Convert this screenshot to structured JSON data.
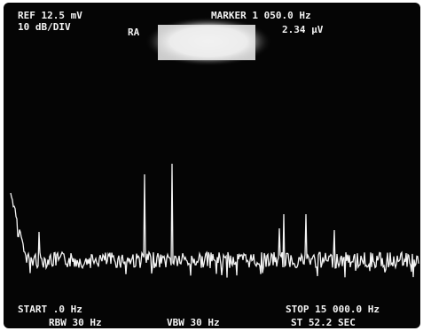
{
  "header": {
    "ref_level": "REF 12.5 mV",
    "scale": "10 dB/DIV",
    "mode": "RA",
    "marker_frequency": "MARKER 1 050.0 Hz",
    "marker_amplitude": "2.34 μV"
  },
  "footer": {
    "start": "START .0 Hz",
    "stop": "STOP 15 000.0 Hz",
    "rbw": "RBW 30 Hz",
    "vbw": "VBW 30 Hz",
    "sweep_time": "ST 52.2 SEC"
  }
}
